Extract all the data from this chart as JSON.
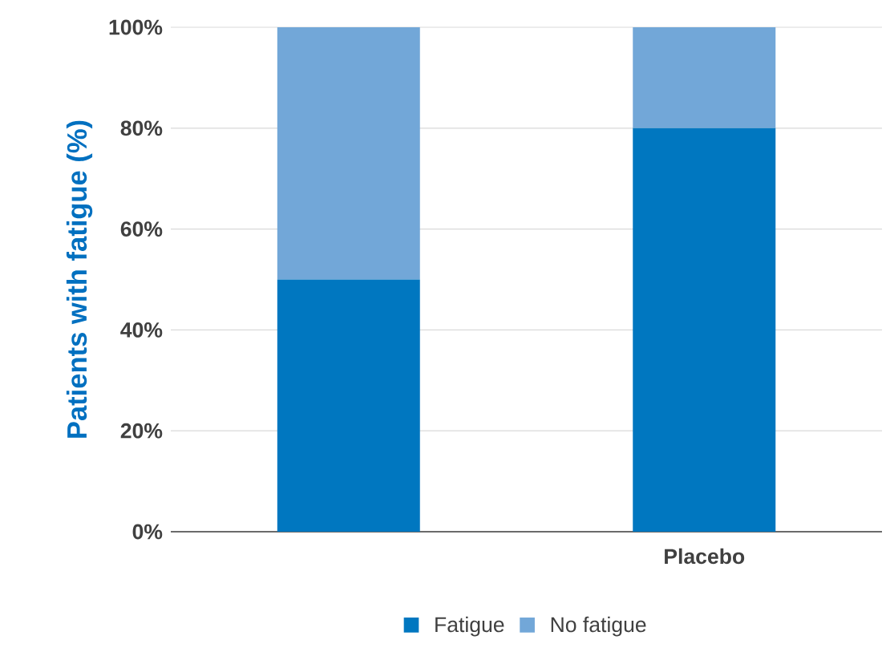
{
  "chart_data": {
    "type": "bar",
    "stacked": true,
    "ylabel": "Patients with fatigue (%)",
    "categories": [
      null,
      "Placebo"
    ],
    "series": [
      {
        "name": "Fatigue",
        "color": "#0077c0",
        "values": [
          50,
          80
        ]
      },
      {
        "name": "No fatigue",
        "color": "#72a7d8",
        "values": [
          50,
          20
        ]
      }
    ],
    "ylim": [
      0,
      100
    ],
    "yticks": [
      {
        "value": 0,
        "label": "0%"
      },
      {
        "value": 20,
        "label": "20%"
      },
      {
        "value": 40,
        "label": "40%"
      },
      {
        "value": 60,
        "label": "60%"
      },
      {
        "value": 80,
        "label": "80%"
      },
      {
        "value": 100,
        "label": "100%"
      }
    ],
    "grid": "y",
    "legend": "bottom"
  }
}
